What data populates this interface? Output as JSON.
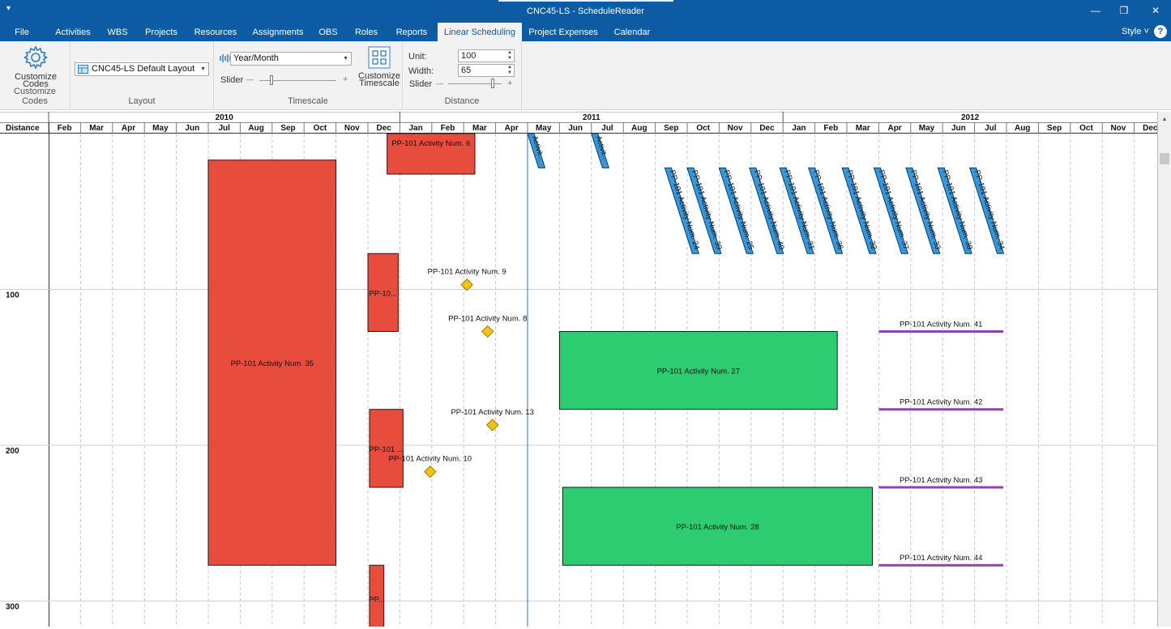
{
  "window": {
    "title": "CNC45-LS - ScheduleReader",
    "quick_access": "▾",
    "minimize": "—",
    "restore": "❐",
    "close": "✕"
  },
  "menu": {
    "tabs": [
      "File",
      "Activities",
      "WBS",
      "Projects",
      "Resources",
      "Assignments",
      "OBS",
      "Roles",
      "Reports",
      "Linear Scheduling",
      "Project Expenses",
      "Calendar"
    ],
    "active": "Linear Scheduling",
    "style_label": "Style",
    "style_arrow": "˅",
    "help": "?"
  },
  "ribbon": {
    "customize_codes": {
      "button": "Customize Codes",
      "group": "Customize Codes",
      "icon": "gear-icon"
    },
    "layout": {
      "value": "CNC45-LS Default Layout",
      "group": "Layout",
      "icon": "layout-icon"
    },
    "timescale": {
      "value": "Year/Month",
      "slider_label": "Slider",
      "button": "Customize Timescale",
      "group": "Timescale",
      "minus": "—",
      "plus": "+"
    },
    "distance": {
      "unit_label": "Unit:",
      "unit_value": "100",
      "width_label": "Width:",
      "width_value": "65",
      "slider_label": "Slider",
      "group": "Distance",
      "minus": "—",
      "plus": "+"
    }
  },
  "chart_data": {
    "type": "linear-schedule",
    "distance_header": "Distance",
    "years": [
      {
        "label": "2010",
        "start": "2010-01",
        "end": "2010-12"
      },
      {
        "label": "2011",
        "start": "2011-01",
        "end": "2011-12"
      },
      {
        "label": "2012",
        "start": "2012-01",
        "end": "2012-12"
      }
    ],
    "months": [
      "Feb",
      "Mar",
      "Apr",
      "May",
      "Jun",
      "Jul",
      "Aug",
      "Sep",
      "Oct",
      "Nov",
      "Dec",
      "Jan",
      "Feb",
      "Mar",
      "Apr",
      "May",
      "Jun",
      "Jul",
      "Aug",
      "Sep",
      "Oct",
      "Nov",
      "Dec",
      "Jan",
      "Feb",
      "Mar",
      "Apr",
      "May",
      "Jun",
      "Jul",
      "Aug",
      "Sep",
      "Oct",
      "Nov",
      "Dec"
    ],
    "month_start": "2010-02",
    "distance_ticks": [
      "100",
      "200",
      "300"
    ],
    "distance_values": [
      100,
      200,
      300
    ],
    "today_month": 15.0,
    "blocks": [
      {
        "label": "PP-101 Activity Num. 6",
        "color": "#e84c3d",
        "m0": 10.6,
        "m1": 13.35,
        "d0": 0,
        "d1": 26
      },
      {
        "label": "PP-101 Activity Num. 35",
        "color": "#e84c3d",
        "m0": 5.0,
        "m1": 9.0,
        "d0": 17,
        "d1": 277
      },
      {
        "label": "PP-10...",
        "color": "#e84c3d",
        "m0": 10.0,
        "m1": 10.95,
        "d0": 77,
        "d1": 127
      },
      {
        "label": "PP-101 ...",
        "color": "#e84c3d",
        "m0": 10.05,
        "m1": 11.1,
        "d0": 177,
        "d1": 227
      },
      {
        "label": "PP...",
        "color": "#e84c3d",
        "m0": 10.05,
        "m1": 10.5,
        "d0": 277,
        "d1": 320
      },
      {
        "label": "PP-101 Activity Num. 27",
        "color": "#2ecc71",
        "m0": 16.0,
        "m1": 24.7,
        "d0": 127,
        "d1": 177
      },
      {
        "label": "PP-101 Activity Num. 28",
        "color": "#2ecc71",
        "m0": 16.1,
        "m1": 25.8,
        "d0": 227,
        "d1": 277
      }
    ],
    "milestones": [
      {
        "label": "PP-101 Activity Num. 9",
        "m": 13.1,
        "d": 97
      },
      {
        "label": "PP-101 Activity Num. 8",
        "m": 13.75,
        "d": 127
      },
      {
        "label": "PP-101 Activity Num. 13",
        "m": 13.9,
        "d": 187
      },
      {
        "label": "PP-101 Activity Num. 10",
        "m": 11.95,
        "d": 217
      }
    ],
    "lines": [
      {
        "label": "PP-101 Activity Num. 41",
        "m0": 26.0,
        "m1": 29.9,
        "d": 127
      },
      {
        "label": "PP-101 Activity Num. 42",
        "m0": 26.0,
        "m1": 29.9,
        "d": 177
      },
      {
        "label": "PP-101 Activity Num. 43",
        "m0": 26.0,
        "m1": 29.9,
        "d": 227
      },
      {
        "label": "PP-101 Activity Num. 44",
        "m0": 26.0,
        "m1": 29.9,
        "d": 277
      }
    ],
    "slant_short": [
      {
        "label": "Activit...",
        "m": 15.0,
        "d0": 0,
        "d1": 22
      },
      {
        "label": "Activit...",
        "m": 17.0,
        "d0": 0,
        "d1": 22
      }
    ],
    "slant_long": [
      {
        "label": "PP-101 Activity Num. 24",
        "m": 19.3
      },
      {
        "label": "PP-101 Activity Num. 39",
        "m": 20.0
      },
      {
        "label": "PP-101 Activity Num. 25",
        "m": 21.0
      },
      {
        "label": "PP-101 Activity Num. 40",
        "m": 21.95
      },
      {
        "label": "PP-101 Activity Num. 31",
        "m": 22.9
      },
      {
        "label": "PP-101 Activity Num. 36",
        "m": 23.8
      },
      {
        "label": "PP-101 Activity Num. 32",
        "m": 24.85
      },
      {
        "label": "PP-101 Activity Num. 37",
        "m": 25.85
      },
      {
        "label": "PP-101 Activity Num. 33",
        "m": 26.85
      },
      {
        "label": "PP-101 Activity Num. 38",
        "m": 27.85
      },
      {
        "label": "PP-101 Activity Num. 34",
        "m": 28.85
      }
    ],
    "slant_long_d": [
      22,
      77
    ]
  }
}
